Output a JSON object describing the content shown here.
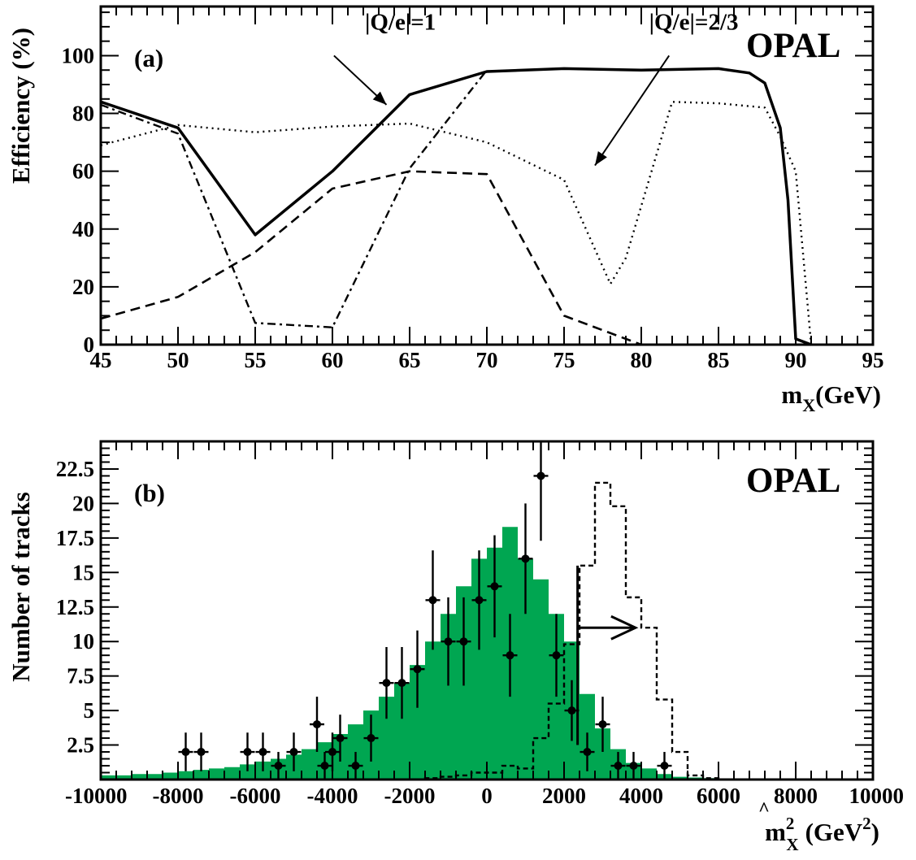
{
  "figure": {
    "label": "OPAL",
    "colors": {
      "histogram_fill": "#00a651",
      "ink": "#000000"
    }
  },
  "chart_data": [
    {
      "type": "line",
      "panel_label": "(a)",
      "experiment": "OPAL",
      "xlabel": "m",
      "xlabel_sub": "X",
      "xlabel_unit": "(GeV)",
      "ylabel": "Efficiency (%)",
      "xlim": [
        45,
        95
      ],
      "ylim": [
        0,
        117
      ],
      "xticks": [
        45,
        50,
        55,
        60,
        65,
        70,
        75,
        80,
        85,
        90,
        95
      ],
      "yticks": [
        0,
        20,
        40,
        60,
        80,
        100
      ],
      "grid": false,
      "series": [
        {
          "style": "solid",
          "x": [
            45,
            50,
            55,
            60,
            65,
            70,
            75,
            80,
            85,
            87,
            88,
            89,
            89.5,
            90,
            91
          ],
          "y": [
            84,
            75,
            38,
            60,
            86.5,
            94.5,
            95.5,
            95,
            95.5,
            94,
            90.5,
            75,
            50,
            2,
            0
          ]
        },
        {
          "style": "dashed",
          "x": [
            45,
            50,
            55,
            60,
            65,
            70,
            75,
            80,
            85,
            91
          ],
          "y": [
            9,
            16.5,
            32,
            54,
            60,
            59,
            10,
            0,
            0,
            0
          ]
        },
        {
          "style": "dashdot",
          "x": [
            45,
            50,
            55,
            60,
            65,
            70
          ],
          "y": [
            83,
            73,
            7.5,
            6,
            61,
            95
          ]
        },
        {
          "style": "dotted",
          "x": [
            45,
            50,
            55,
            60,
            65,
            70,
            75,
            78,
            79,
            82,
            85,
            88,
            89,
            90,
            90.5,
            91
          ],
          "y": [
            69,
            76,
            73.5,
            75.5,
            76.5,
            70,
            57,
            21,
            30,
            84,
            83.5,
            82,
            72,
            60,
            30,
            0
          ]
        }
      ],
      "annotations": [
        {
          "text": "|Q/e|=1",
          "x": 64.4,
          "y": 109,
          "arrow_from": [
            60.1,
            100
          ],
          "arrow_to": [
            63.5,
            83
          ]
        },
        {
          "text": "|Q/e|=2/3",
          "x": 83.4,
          "y": 109,
          "arrow_from": [
            81.8,
            100
          ],
          "arrow_to": [
            77,
            62
          ]
        }
      ]
    },
    {
      "type": "bar",
      "panel_label": "(b)",
      "experiment": "OPAL",
      "xlabel": "m",
      "xlabel_sub": "X",
      "xlabel_sup": "2",
      "xlabel_unit": "(GeV",
      "xlabel_unit_sup": "2",
      "xlabel_unit_close": ")",
      "ylabel": "Number of tracks",
      "xlim": [
        -10000,
        10000
      ],
      "ylim": [
        0,
        24.5
      ],
      "xticks": [
        -10000,
        -8000,
        -6000,
        -4000,
        -2000,
        0,
        2000,
        4000,
        6000,
        8000,
        10000
      ],
      "yticks": [
        2.5,
        5,
        7.5,
        10,
        12.5,
        15,
        17.5,
        20,
        22.5
      ],
      "yticklabels": [
        "2.5",
        "5",
        "7.5",
        "10",
        "12.5",
        "15",
        "17.5",
        "20",
        "22.5"
      ],
      "grid": false,
      "bin_edges": [
        -10000,
        -9600,
        -9200,
        -8800,
        -8400,
        -8000,
        -7600,
        -7200,
        -6800,
        -6400,
        -6000,
        -5600,
        -5200,
        -4800,
        -4400,
        -4000,
        -3600,
        -3200,
        -2800,
        -2400,
        -2000,
        -1600,
        -1200,
        -800,
        -400,
        0,
        400,
        800,
        1200,
        1600,
        2000,
        2400,
        2800,
        3200,
        3600,
        4000,
        4400,
        4800,
        5200,
        5600,
        6000,
        6400,
        6800,
        7200,
        7600,
        8000,
        8400,
        8800,
        9200,
        9600,
        10000
      ],
      "histogram": [
        0.3,
        0.3,
        0.4,
        0.4,
        0.5,
        0.6,
        0.7,
        0.8,
        0.9,
        1.1,
        1.3,
        1.5,
        1.8,
        2.2,
        2.7,
        3.3,
        4.0,
        5.0,
        6.0,
        7.0,
        8.3,
        10.0,
        12.0,
        14.0,
        16.0,
        16.8,
        18.3,
        16.0,
        14.5,
        12.0,
        10.0,
        6.2,
        3.7,
        2.2,
        1.2,
        0.8,
        0.4,
        0.2,
        0.15,
        0.1,
        0,
        0,
        0,
        0,
        0,
        0,
        0,
        0,
        0,
        0
      ],
      "dashed_histogram": [
        0,
        0,
        0,
        0,
        0,
        0,
        0,
        0,
        0,
        0,
        0,
        0,
        0,
        0,
        0,
        0,
        0,
        0,
        0,
        0,
        0,
        0.1,
        0.2,
        0.3,
        0.5,
        0.5,
        1.0,
        0.8,
        3.0,
        5.5,
        9.8,
        15.5,
        21.5,
        19.8,
        13.2,
        11.0,
        5.8,
        2.0,
        0.3,
        0.1,
        0,
        0,
        0,
        0,
        0,
        0,
        0,
        0,
        0,
        0
      ],
      "data_points": {
        "x": [
          -7800,
          -7400,
          -6200,
          -5800,
          -5400,
          -5000,
          -4400,
          -4200,
          -4000,
          -3800,
          -3400,
          -3000,
          -2600,
          -2200,
          -1800,
          -1400,
          -1000,
          -600,
          -200,
          200,
          600,
          1000,
          1400,
          1800,
          2200,
          2600,
          3000,
          3400,
          3800,
          4600
        ],
        "y": [
          2,
          2,
          2,
          2,
          1,
          2,
          4,
          1,
          2,
          3,
          1,
          3,
          7,
          7,
          8,
          13,
          10,
          10,
          13,
          14,
          9,
          16,
          22,
          9,
          5,
          2,
          4,
          1,
          1,
          1
        ],
        "yerr": [
          1.4,
          1.4,
          1.4,
          1.4,
          1.0,
          1.4,
          2.0,
          1.0,
          1.4,
          1.7,
          1.0,
          1.7,
          2.6,
          2.6,
          2.8,
          3.6,
          3.2,
          3.2,
          3.6,
          3.7,
          3.0,
          4.0,
          4.7,
          3.0,
          2.2,
          1.4,
          2.0,
          1.0,
          1.0,
          1.0
        ]
      },
      "cut": {
        "x": 2350,
        "ymin": 2.5,
        "ymax": 15.5,
        "arrow_y": 11,
        "arrow_to_x": 3850
      }
    }
  ]
}
